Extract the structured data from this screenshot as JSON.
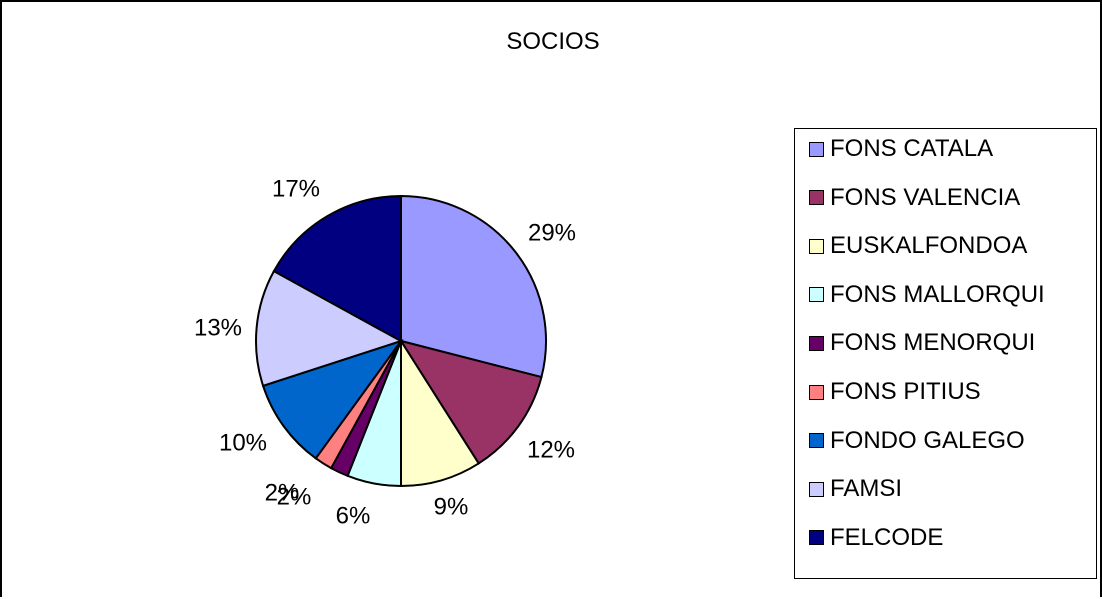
{
  "chart_data": {
    "type": "pie",
    "title": "SOCIOS",
    "slices": [
      {
        "label": "FONS CATALA",
        "value": 29,
        "pct_label": "29%",
        "color": "#9999ff"
      },
      {
        "label": "FONS VALENCIA",
        "value": 12,
        "pct_label": "12%",
        "color": "#993366"
      },
      {
        "label": "EUSKALFONDOA",
        "value": 9,
        "pct_label": "9%",
        "color": "#ffffcc"
      },
      {
        "label": "FONS MALLORQUI",
        "value": 6,
        "pct_label": "6%",
        "color": "#ccffff"
      },
      {
        "label": "FONS MENORQUI",
        "value": 2,
        "pct_label": "2%",
        "color": "#660066"
      },
      {
        "label": "FONS PITIUS",
        "value": 2,
        "pct_label": "2%",
        "color": "#ff8080"
      },
      {
        "label": "FONDO GALEGO",
        "value": 10,
        "pct_label": "10%",
        "color": "#0066cc"
      },
      {
        "label": "FAMSI",
        "value": 13,
        "pct_label": "13%",
        "color": "#ccccff"
      },
      {
        "label": "FELCODE",
        "value": 17,
        "pct_label": "17%",
        "color": "#000080"
      }
    ],
    "legend_position": "right"
  }
}
